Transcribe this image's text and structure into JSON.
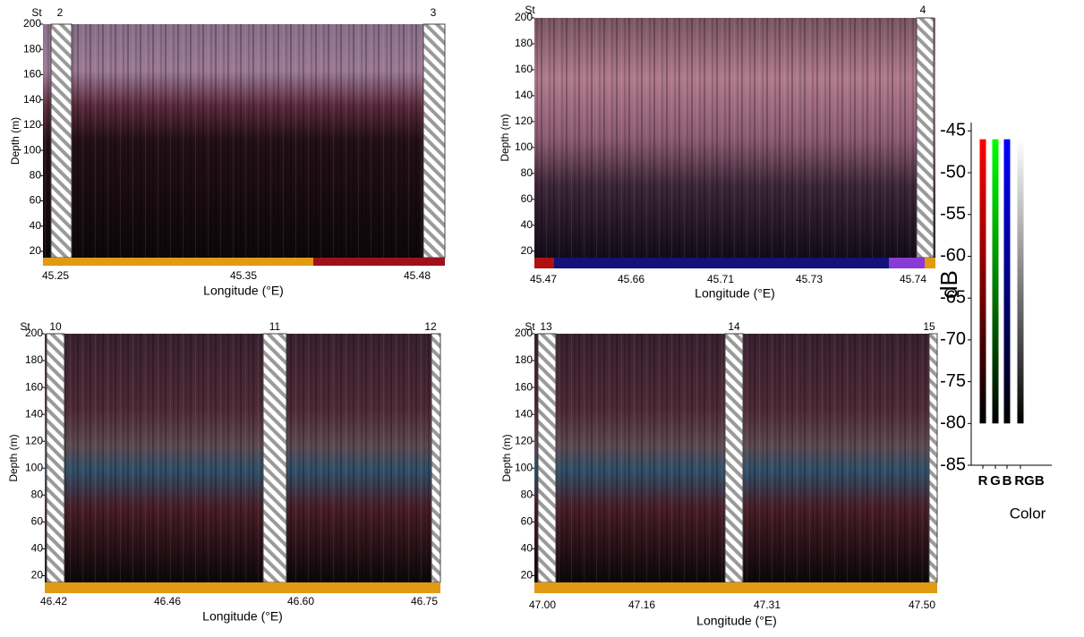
{
  "panels": [
    {
      "station_label": "St",
      "stations": [
        2,
        3
      ],
      "ylabel": "Depth (m)",
      "ylim": [
        15,
        200
      ],
      "yticks": [
        20,
        40,
        60,
        80,
        100,
        120,
        140,
        160,
        180,
        200
      ],
      "xticks": [
        45.25,
        45.35,
        45.48
      ],
      "xlabel": "Longitude (°E)"
    },
    {
      "station_label": "St",
      "stations": [
        4
      ],
      "ylabel": "Depth (m)",
      "ylim": [
        15,
        200
      ],
      "yticks": [
        20,
        40,
        60,
        80,
        100,
        120,
        140,
        160,
        180,
        200
      ],
      "xticks": [
        45.47,
        45.66,
        45.71,
        45.73,
        45.74
      ],
      "xlabel": "Longitude (°E)"
    },
    {
      "station_label": "St",
      "stations": [
        10,
        11,
        12
      ],
      "ylabel": "Depth (m)",
      "ylim": [
        15,
        200
      ],
      "yticks": [
        20,
        40,
        60,
        80,
        100,
        120,
        140,
        160,
        180,
        200
      ],
      "xticks": [
        46.42,
        46.46,
        {
          "value": 46.6,
          "label": "46.60"
        },
        46.75
      ],
      "xlabel": "Longitude (°E)"
    },
    {
      "station_label": "St",
      "stations": [
        13,
        14,
        15
      ],
      "ylabel": "Depth (m)",
      "ylim": [
        15,
        200
      ],
      "yticks": [
        20,
        40,
        60,
        80,
        100,
        120,
        140,
        160,
        180,
        200
      ],
      "xticks": [
        {
          "value": 47,
          "label": "47.00"
        },
        47.16,
        47.31,
        {
          "value": 47.5,
          "label": "47.50"
        }
      ],
      "xlabel": "Longitude (°E)"
    }
  ],
  "colorbar": {
    "ylabel": "dB",
    "ylim": [
      -85,
      -44
    ],
    "yticks": [
      -45,
      -50,
      -55,
      -60,
      -65,
      -70,
      -75,
      -80,
      -85
    ],
    "categories": [
      "R",
      "G",
      "B",
      "RGB"
    ],
    "colors": [
      "#ff0000",
      "#00ff00",
      "#0000ff",
      "#ffffff"
    ],
    "range": [
      -80,
      -46
    ],
    "xlabel": "Color"
  }
}
